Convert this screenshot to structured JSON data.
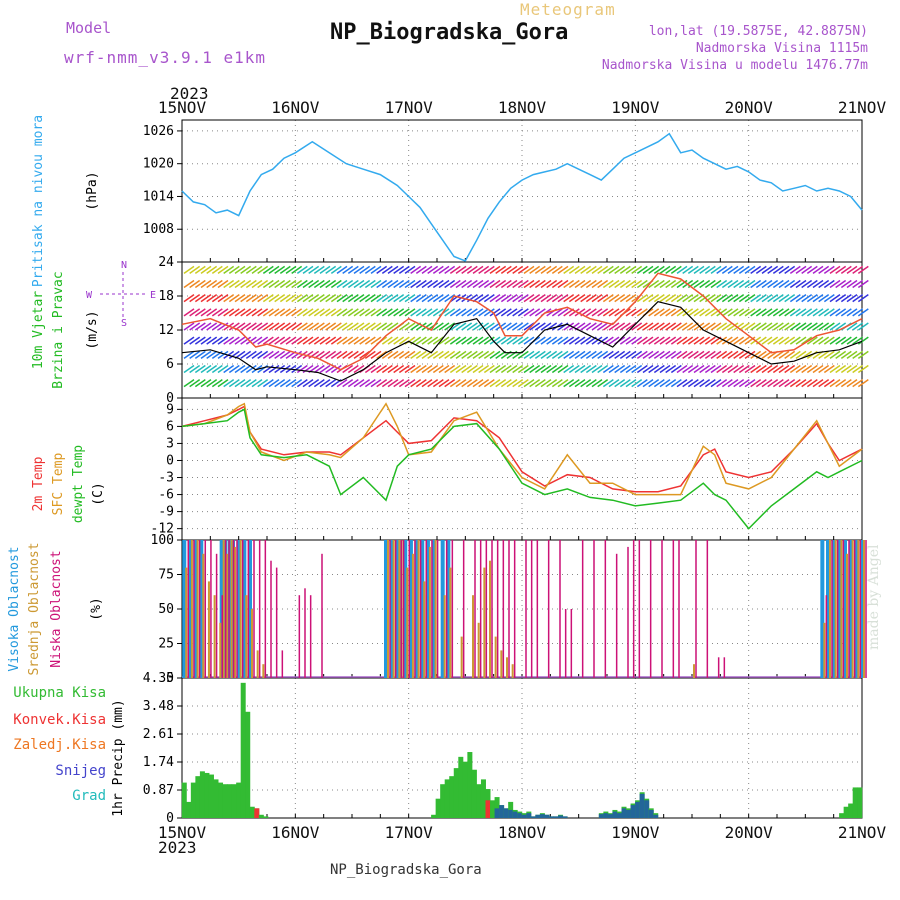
{
  "header": {
    "model_label": "Model",
    "model_name": "wrf-nmm_v3.9.1 e1km",
    "station": "NP_Biogradska_Gora",
    "product": "Meteogram",
    "lonlat": "lon,lat (19.5875E, 42.8875N)",
    "elevation": "Nadmorska Visina 1115m",
    "model_elevation": "Nadmorska Visina u modelu 1476.77m"
  },
  "time_axis": {
    "year": "2023",
    "ticks": [
      "15NOV",
      "16NOV",
      "17NOV",
      "18NOV",
      "19NOV",
      "20NOV",
      "21NOV"
    ]
  },
  "footer": {
    "station": "NP_Biogradska_Gora",
    "credit": "made by Angel"
  },
  "colors": {
    "pressure": "#33aaee",
    "temp2m": "#ee3333",
    "sfc_temp": "#dd9922",
    "dewpoint": "#22bb22",
    "high_cloud": "#2299dd",
    "mid_cloud": "#cc9933",
    "low_cloud": "#cc1177",
    "precip_total": "#33bb33",
    "precip_conv": "#ee3333",
    "precip_freezing": "#ee7722",
    "snow": "#4444cc",
    "graupel": "#22bbbb",
    "wind_label": "#22bb22",
    "wind_units": "#9933cc"
  },
  "chart_data": [
    {
      "type": "line",
      "panel": "pressure",
      "ylabel_main": "Pritisak na nivou mora",
      "units": "(hPa)",
      "ylim": [
        1002,
        1028
      ],
      "yticks": [
        1008,
        1014,
        1020,
        1026
      ],
      "x": [
        0,
        0.1,
        0.2,
        0.3,
        0.4,
        0.5,
        0.6,
        0.7,
        0.8,
        0.9,
        1.0,
        1.15,
        1.3,
        1.45,
        1.6,
        1.75,
        1.9,
        2.0,
        2.1,
        2.2,
        2.3,
        2.4,
        2.5,
        2.6,
        2.7,
        2.8,
        2.9,
        3.0,
        3.1,
        3.2,
        3.3,
        3.4,
        3.5,
        3.6,
        3.7,
        3.8,
        3.9,
        4.0,
        4.1,
        4.2,
        4.3,
        4.4,
        4.5,
        4.6,
        4.7,
        4.8,
        4.9,
        5.0,
        5.1,
        5.2,
        5.3,
        5.4,
        5.5,
        5.6,
        5.7,
        5.8,
        5.9,
        6.0
      ],
      "series": [
        {
          "values": [
            1015,
            1013,
            1012.5,
            1011,
            1011.5,
            1010.5,
            1015,
            1018,
            1019,
            1021,
            1022,
            1024,
            1022,
            1020,
            1019,
            1018,
            1016,
            1014,
            1012,
            1009,
            1006,
            1003,
            1002.2,
            1006,
            1010,
            1013,
            1015.5,
            1017,
            1018,
            1018.5,
            1019,
            1020,
            1019,
            1018,
            1017,
            1019,
            1021,
            1022,
            1023,
            1024,
            1025.5,
            1022,
            1022.5,
            1021,
            1020,
            1019,
            1019.5,
            1018.5,
            1017,
            1016.5,
            1015,
            1015.5,
            1016,
            1015,
            1015.5,
            1015,
            1014,
            1011.5
          ]
        }
      ]
    },
    {
      "type": "line",
      "panel": "wind",
      "ylabel_main": "10m Vjetar",
      "ylabel_sub": "Brzina i Pravac",
      "units": "(m/s)",
      "compass": {
        "n": "N",
        "w": "W",
        "e": "E",
        "s": "S"
      },
      "ylim": [
        0,
        24
      ],
      "yticks": [
        0,
        6,
        12,
        18,
        24
      ],
      "x": [
        0,
        0.25,
        0.5,
        0.65,
        0.75,
        1.0,
        1.2,
        1.4,
        1.6,
        1.8,
        2.0,
        2.2,
        2.4,
        2.6,
        2.75,
        2.85,
        3.0,
        3.2,
        3.4,
        3.6,
        3.8,
        4.0,
        4.2,
        4.4,
        4.6,
        4.8,
        5.0,
        5.2,
        5.4,
        5.6,
        5.8,
        6.0
      ],
      "series": [
        {
          "name": "speed",
          "values": [
            8,
            8.5,
            7,
            5,
            5.5,
            5,
            4.5,
            3,
            5,
            8,
            10,
            8,
            13,
            14,
            10,
            8,
            8,
            12,
            13,
            11,
            9,
            13,
            17,
            16,
            12,
            10,
            8,
            6,
            6.5,
            8,
            8.5,
            10
          ]
        },
        {
          "name": "gust",
          "values": [
            13,
            14,
            12,
            9,
            9.5,
            8,
            7,
            5,
            7,
            11,
            14,
            12,
            18,
            17,
            15,
            11,
            11,
            15,
            16,
            14,
            13,
            17,
            22,
            21,
            18,
            14,
            11,
            8,
            8.5,
            11,
            12,
            14
          ]
        }
      ]
    },
    {
      "type": "line",
      "panel": "temperature",
      "labels": [
        "2m Temp",
        "SFC Temp",
        "dewpt Temp"
      ],
      "units": "(C)",
      "ylim": [
        -14,
        11
      ],
      "yticks": [
        -12,
        -9,
        -6,
        -3,
        0,
        3,
        6,
        9
      ],
      "x": [
        0,
        0.2,
        0.4,
        0.5,
        0.55,
        0.6,
        0.7,
        0.9,
        1.1,
        1.3,
        1.4,
        1.6,
        1.8,
        1.9,
        2.0,
        2.2,
        2.4,
        2.6,
        2.8,
        3.0,
        3.2,
        3.4,
        3.6,
        3.8,
        4.0,
        4.2,
        4.4,
        4.6,
        4.7,
        4.8,
        5.0,
        5.2,
        5.4,
        5.6,
        5.7,
        5.8,
        6.0
      ],
      "series": [
        {
          "name": "2m Temp",
          "values": [
            6,
            7,
            8,
            9,
            9.5,
            5,
            2,
            1,
            1.5,
            1.5,
            1,
            4,
            7,
            5,
            3,
            3.5,
            7.5,
            7,
            4,
            -2,
            -4.5,
            -2.5,
            -3,
            -5,
            -5.5,
            -5.5,
            -4.5,
            1,
            2,
            -2,
            -3,
            -2,
            2,
            6.5,
            3,
            0,
            2
          ]
        },
        {
          "name": "SFC Temp",
          "values": [
            6,
            6.5,
            8,
            9.5,
            10,
            5,
            1.5,
            0,
            1.5,
            1,
            0.5,
            4,
            10,
            6,
            1,
            1.5,
            7,
            8.5,
            2,
            -3,
            -5,
            1,
            -4,
            -4,
            -6,
            -6,
            -6,
            2.5,
            1,
            -4,
            -5,
            -3,
            2,
            7,
            3,
            -1,
            2
          ]
        },
        {
          "name": "dewpt Temp",
          "values": [
            6,
            6.5,
            7,
            8.5,
            9,
            4,
            1,
            0.5,
            1,
            -1,
            -6,
            -3,
            -7,
            -1,
            1,
            2,
            6,
            6.5,
            2,
            -4,
            -6,
            -5,
            -6.5,
            -7,
            -8,
            -7.5,
            -7,
            -4,
            -6,
            -7,
            -12,
            -8,
            -5,
            -2,
            -3,
            -2,
            0
          ]
        }
      ]
    },
    {
      "type": "bar",
      "panel": "clouds",
      "labels": [
        "Visoka Oblacnost",
        "Srednja Oblacnost",
        "Niska Oblacnost"
      ],
      "units": "(%)",
      "ylim": [
        0,
        100
      ],
      "yticks": [
        0,
        25,
        50,
        75,
        100
      ],
      "x": [
        0.02,
        0.07,
        0.12,
        0.17,
        0.22,
        0.27,
        0.32,
        0.35,
        0.38,
        0.42,
        0.45,
        0.5,
        0.55,
        0.6,
        0.65,
        0.7,
        0.75,
        0.8,
        0.85,
        1.0,
        1.05,
        1.1,
        1.2,
        1.3,
        1.35,
        1.6,
        1.8,
        1.85,
        1.9,
        1.92,
        1.97,
        2.02,
        2.07,
        2.12,
        2.17,
        2.22,
        2.3,
        2.35,
        2.45,
        2.55,
        2.6,
        2.65,
        2.7,
        2.75,
        2.8,
        2.85,
        2.9,
        3.0,
        3.05,
        3.1,
        3.2,
        3.3,
        3.35,
        3.4,
        3.5,
        3.6,
        3.7,
        3.8,
        3.9,
        3.95,
        4.0,
        4.1,
        4.2,
        4.3,
        4.35,
        4.5,
        4.6,
        4.7,
        4.75,
        5.65,
        5.7,
        5.75,
        5.8,
        5.85,
        5.9,
        5.95,
        6.0
      ],
      "series": [
        {
          "name": "Visoka Oblacnost",
          "values": [
            100,
            100,
            100,
            100,
            0,
            0,
            0,
            100,
            100,
            100,
            100,
            100,
            100,
            100,
            0,
            0,
            0,
            0,
            0,
            0,
            0,
            0,
            0,
            0,
            0,
            0,
            100,
            100,
            100,
            100,
            100,
            100,
            100,
            100,
            100,
            100,
            100,
            100,
            0,
            0,
            0,
            0,
            0,
            0,
            0,
            0,
            0,
            0,
            0,
            0,
            0,
            0,
            0,
            0,
            0,
            0,
            0,
            0,
            0,
            0,
            0,
            0,
            0,
            0,
            0,
            0,
            0,
            0,
            0,
            100,
            100,
            100,
            100,
            100,
            100,
            100,
            100
          ]
        },
        {
          "name": "Srednja Oblacnost",
          "values": [
            80,
            100,
            100,
            90,
            70,
            60,
            40,
            100,
            90,
            100,
            95,
            100,
            60,
            50,
            20,
            10,
            0,
            0,
            0,
            0,
            0,
            0,
            0,
            0,
            0,
            0,
            100,
            100,
            100,
            100,
            80,
            90,
            100,
            70,
            95,
            100,
            60,
            80,
            30,
            60,
            40,
            80,
            85,
            30,
            20,
            15,
            10,
            0,
            0,
            0,
            0,
            0,
            0,
            0,
            0,
            0,
            0,
            0,
            0,
            0,
            0,
            0,
            0,
            0,
            0,
            10,
            0,
            0,
            0,
            40,
            100,
            100,
            100,
            90,
            100,
            100,
            100
          ]
        },
        {
          "name": "Niska Oblacnost",
          "values": [
            100,
            100,
            100,
            100,
            100,
            90,
            60,
            100,
            100,
            100,
            100,
            100,
            100,
            100,
            100,
            100,
            85,
            80,
            20,
            60,
            65,
            60,
            90,
            0,
            0,
            0,
            100,
            100,
            100,
            100,
            100,
            100,
            100,
            100,
            100,
            100,
            100,
            100,
            100,
            100,
            100,
            100,
            100,
            100,
            100,
            100,
            100,
            100,
            100,
            100,
            100,
            100,
            50,
            50,
            100,
            100,
            100,
            90,
            95,
            100,
            100,
            100,
            100,
            100,
            100,
            100,
            100,
            15,
            15,
            60,
            100,
            100,
            100,
            100,
            100,
            100,
            100
          ]
        }
      ]
    },
    {
      "type": "bar",
      "panel": "precipitation",
      "labels": [
        "Ukupna Kisa",
        "Konvek.Kisa",
        "Zaledj.Kisa",
        "Snijeg",
        "Grad"
      ],
      "units": "1hr Precip (mm)",
      "ylim": [
        0,
        4.35
      ],
      "yticks": [
        0,
        0.87,
        1.74,
        2.61,
        3.48,
        4.35
      ],
      "x": [
        0.02,
        0.06,
        0.1,
        0.14,
        0.18,
        0.22,
        0.26,
        0.3,
        0.34,
        0.38,
        0.42,
        0.46,
        0.5,
        0.54,
        0.58,
        0.62,
        0.66,
        0.7,
        0.74,
        2.22,
        2.26,
        2.3,
        2.34,
        2.38,
        2.42,
        2.46,
        2.5,
        2.54,
        2.58,
        2.62,
        2.66,
        2.7,
        2.74,
        2.78,
        2.82,
        2.86,
        2.9,
        2.94,
        2.98,
        3.02,
        3.06,
        3.1,
        3.14,
        3.18,
        3.22,
        3.26,
        3.3,
        3.34,
        3.38,
        3.7,
        3.74,
        3.78,
        3.82,
        3.86,
        3.9,
        3.94,
        3.98,
        4.02,
        4.06,
        4.1,
        4.14,
        4.18,
        5.82,
        5.86,
        5.9,
        5.94,
        5.98
      ],
      "series": [
        {
          "name": "Ukupna Kisa",
          "values": [
            1.1,
            0.5,
            1.1,
            1.3,
            1.45,
            1.4,
            1.35,
            1.2,
            1.1,
            1.05,
            1.05,
            1.05,
            1.1,
            4.2,
            3.3,
            0.35,
            0.3,
            0.1,
            0.05,
            0.1,
            0.6,
            1.05,
            1.2,
            1.3,
            1.55,
            1.9,
            1.75,
            2.05,
            1.5,
            1.05,
            1.2,
            0.9,
            0.55,
            0.65,
            0.4,
            0.3,
            0.5,
            0.25,
            0.2,
            0.15,
            0.2,
            0.05,
            0.1,
            0.15,
            0.1,
            0.05,
            0.05,
            0.1,
            0.05,
            0.15,
            0.2,
            0.15,
            0.25,
            0.2,
            0.35,
            0.3,
            0.45,
            0.55,
            0.8,
            0.6,
            0.3,
            0.15,
            0.15,
            0.35,
            0.45,
            0.95,
            0.95
          ]
        },
        {
          "name": "Konvek.Kisa",
          "values": [
            0,
            0,
            0,
            0,
            0,
            0,
            0,
            0,
            0,
            0,
            0,
            0,
            0,
            0,
            0,
            0,
            0.3,
            0,
            0,
            0,
            0,
            0,
            0,
            0,
            0,
            0,
            0,
            0,
            0,
            0,
            0,
            0.55,
            0,
            0,
            0,
            0,
            0,
            0,
            0,
            0,
            0,
            0,
            0,
            0,
            0,
            0,
            0,
            0,
            0,
            0,
            0,
            0,
            0,
            0,
            0,
            0,
            0,
            0,
            0,
            0,
            0,
            0,
            0,
            0,
            0,
            0,
            0
          ]
        },
        {
          "name": "Snijeg",
          "values": [
            0,
            0,
            0,
            0,
            0,
            0,
            0,
            0,
            0,
            0,
            0,
            0,
            0,
            0,
            0,
            0,
            0,
            0,
            0,
            0,
            0,
            0,
            0,
            0,
            0,
            0,
            0,
            0,
            0,
            0,
            0,
            0,
            0,
            0.3,
            0.4,
            0.3,
            0.25,
            0.2,
            0.15,
            0.1,
            0.15,
            0.05,
            0.1,
            0.12,
            0.1,
            0.05,
            0.05,
            0.08,
            0.05,
            0.12,
            0.15,
            0.12,
            0.2,
            0.15,
            0.3,
            0.25,
            0.4,
            0.5,
            0.75,
            0.55,
            0.25,
            0.1,
            0,
            0,
            0,
            0,
            0
          ]
        }
      ]
    }
  ]
}
